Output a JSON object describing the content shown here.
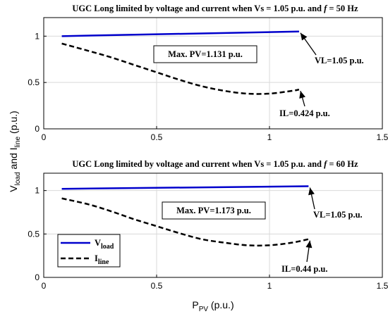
{
  "chart_data": [
    {
      "type": "line",
      "title": "UGC Long limited by voltage and current when Vs = 1.05 p.u. and f = 50 Hz",
      "xlim": [
        0,
        1.5
      ],
      "ylim": [
        0,
        1.2
      ],
      "xticks": [
        "0",
        "0.5",
        "1",
        "1.5"
      ],
      "yticks": [
        "0",
        "0.5",
        "1"
      ],
      "grid": true,
      "series": [
        {
          "name": "V_load",
          "color": "#0000cc",
          "style": "solid",
          "x": [
            0.08,
            1.131
          ],
          "y": [
            1.0,
            1.05
          ]
        },
        {
          "name": "I_line",
          "color": "#000000",
          "style": "dashed",
          "x": [
            0.08,
            0.2,
            0.3,
            0.4,
            0.5,
            0.6,
            0.7,
            0.8,
            0.9,
            1.0,
            1.1,
            1.131
          ],
          "y": [
            0.92,
            0.84,
            0.77,
            0.69,
            0.61,
            0.53,
            0.46,
            0.41,
            0.38,
            0.38,
            0.41,
            0.424
          ]
        }
      ],
      "annotations": [
        {
          "text": "Max. PV=1.131 p.u.",
          "boxed": true
        },
        {
          "text": "VL=1.05 p.u.",
          "arrow_to": [
            1.131,
            1.05
          ]
        },
        {
          "text": "IL=0.424 p.u.",
          "arrow_to": [
            1.131,
            0.424
          ]
        }
      ]
    },
    {
      "type": "line",
      "title": "UGC Long limited by voltage and current when Vs = 1.05 p.u. and f = 60 Hz",
      "xlim": [
        0,
        1.5
      ],
      "ylim": [
        0,
        1.2
      ],
      "xticks": [
        "0",
        "0.5",
        "1",
        "1.5"
      ],
      "yticks": [
        "0",
        "0.5",
        "1"
      ],
      "grid": true,
      "legend": {
        "placement": "bottom-left",
        "entries": [
          "V_load",
          "I_line"
        ]
      },
      "series": [
        {
          "name": "V_load",
          "color": "#0000cc",
          "style": "solid",
          "x": [
            0.08,
            1.173
          ],
          "y": [
            1.02,
            1.05
          ]
        },
        {
          "name": "I_line",
          "color": "#000000",
          "style": "dashed",
          "x": [
            0.08,
            0.2,
            0.3,
            0.4,
            0.5,
            0.6,
            0.7,
            0.8,
            0.9,
            1.0,
            1.1,
            1.173
          ],
          "y": [
            0.91,
            0.84,
            0.76,
            0.67,
            0.59,
            0.51,
            0.44,
            0.4,
            0.37,
            0.37,
            0.4,
            0.44
          ]
        }
      ],
      "annotations": [
        {
          "text": "Max. PV=1.173 p.u.",
          "boxed": true
        },
        {
          "text": "VL=1.05 p.u.",
          "arrow_to": [
            1.173,
            1.05
          ]
        },
        {
          "text": "IL=0.44 p.u.",
          "arrow_to": [
            1.173,
            0.44
          ]
        }
      ]
    }
  ],
  "shared_labels": {
    "ylabel": {
      "main": "V",
      "sub1": "load",
      "mid": " and I",
      "sub2": "line",
      "tail": " (p.u.)"
    },
    "xlabel": {
      "main": "P",
      "sub": "PV",
      "tail": " (p.u.)"
    }
  },
  "legend_text": {
    "v_main": "V",
    "v_sub": "load",
    "i_main": "I",
    "i_sub": "line"
  }
}
